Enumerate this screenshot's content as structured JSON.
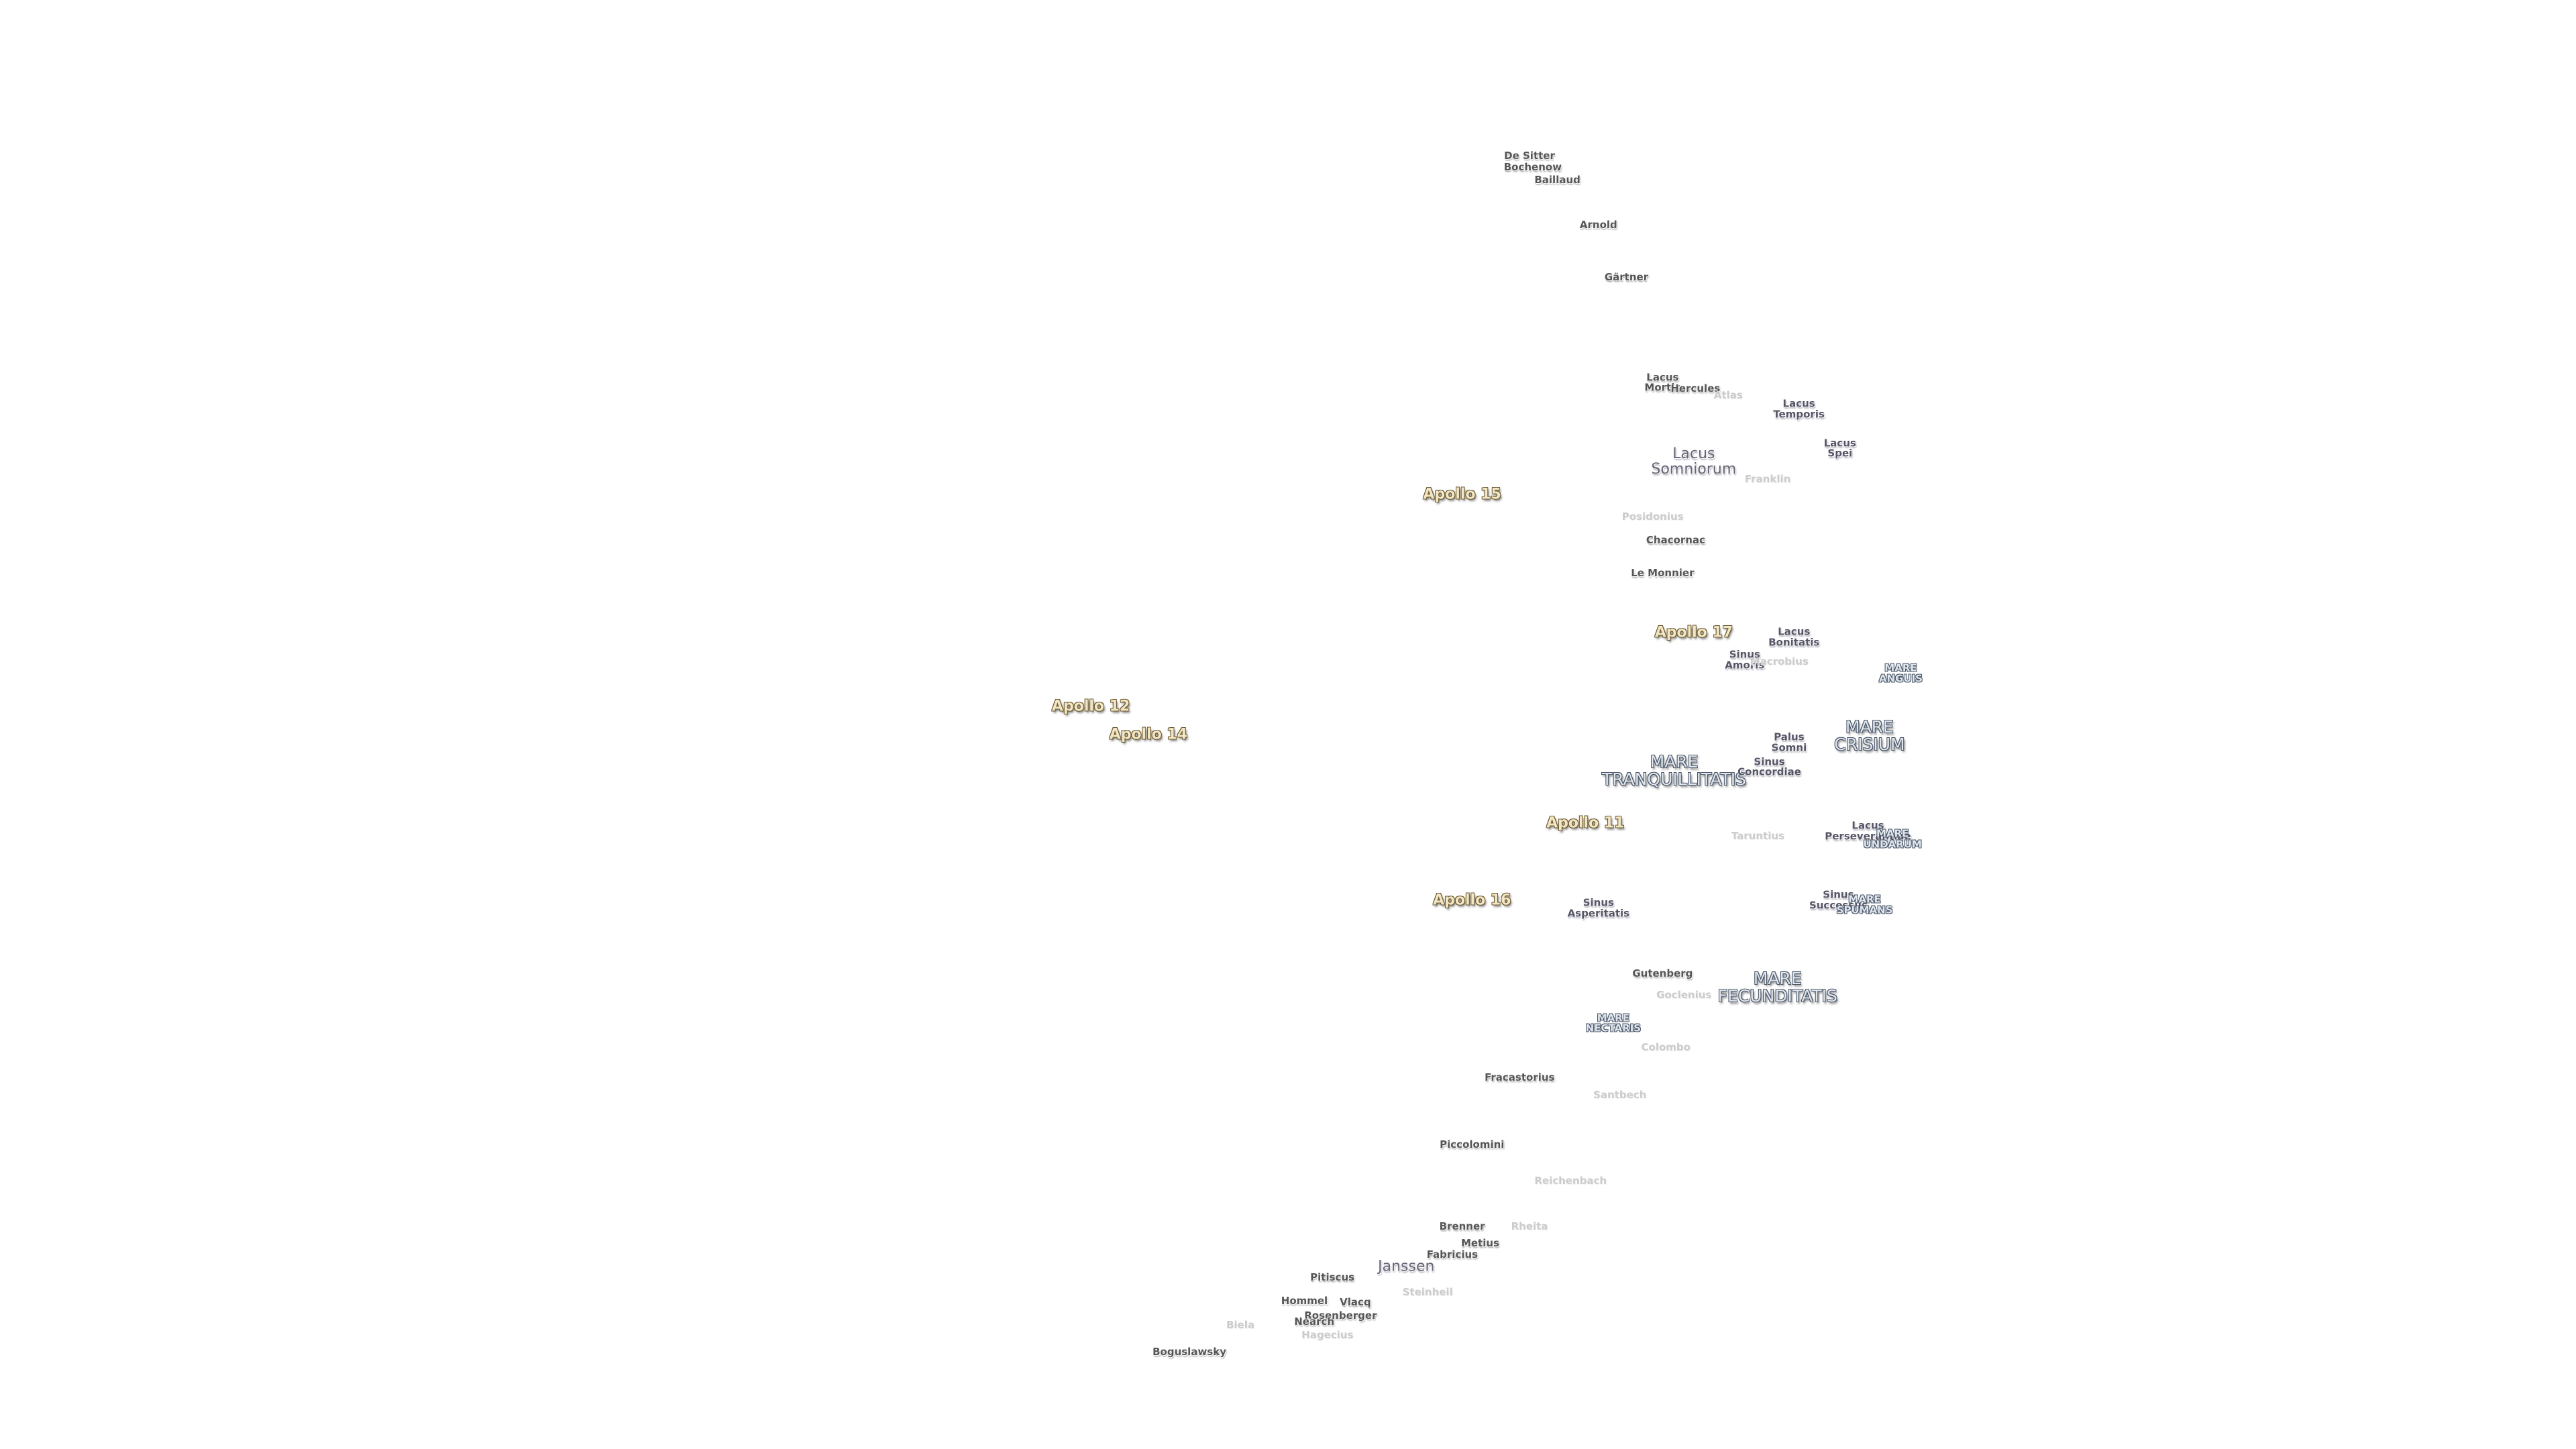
{
  "labels": [
    [
      "De Sitter"
    ],
    [
      "Bochenow"
    ],
    [
      "Baillaud"
    ],
    [
      "Arnold"
    ],
    [
      "Gärtner"
    ],
    [
      "Lacus",
      "Mortis"
    ],
    [
      "Hercules"
    ],
    [
      "Atlas"
    ],
    [
      "Lacus",
      "Temporis"
    ],
    [
      "Lacus",
      "Spei"
    ],
    [
      "Lacus",
      "Somniorum"
    ],
    [
      "Franklin"
    ],
    [
      "Apollo 15"
    ],
    [
      "Posidonius"
    ],
    [
      "Chacornac"
    ],
    [
      "Le Monnier"
    ],
    [
      "Apollo 17"
    ],
    [
      "Lacus",
      "Bonitatis"
    ],
    [
      "Sinus",
      "Amoris"
    ],
    [
      "Macrobius"
    ],
    [
      "MARE",
      "ANGUIS"
    ],
    [
      "Apollo 12"
    ],
    [
      "Apollo 14"
    ],
    [
      "MARE",
      "CRISIUM"
    ],
    [
      "Palus",
      "Somni"
    ],
    [
      "MARE",
      "TRANQUILLITATIS"
    ],
    [
      "Sinus",
      "Concordiae"
    ],
    [
      "Apollo 11"
    ],
    [
      "Taruntius"
    ],
    [
      "Lacus",
      "Perseverantiae"
    ],
    [
      "MARE",
      "UNDARUM"
    ],
    [
      "Apollo 16"
    ],
    [
      "Sinus",
      "Asperitatis"
    ],
    [
      "Sinus",
      "Successus"
    ],
    [
      "MARE",
      "SPUMANS"
    ],
    [
      "Gutenberg"
    ],
    [
      "MARE",
      "FECUNDITATIS"
    ],
    [
      "Goclenius"
    ],
    [
      "MARE",
      "NECTARIS"
    ],
    [
      "Colombo"
    ],
    [
      "Fracastorius"
    ],
    [
      "Santbech"
    ],
    [
      "Piccolomini"
    ],
    [
      "Reichenbach"
    ],
    [
      "Brenner"
    ],
    [
      "Rheita"
    ],
    [
      "Metius"
    ],
    [
      "Fabricius"
    ],
    [
      "Janssen"
    ],
    [
      "Pitiscus"
    ],
    [
      "Steinheil"
    ],
    [
      "Hommel"
    ],
    [
      "Vlacq"
    ],
    [
      "Rosenberger"
    ],
    [
      "Nearch"
    ],
    [
      "Biela"
    ],
    [
      "Hagecius"
    ],
    [
      "Boguslawsky"
    ]
  ]
}
